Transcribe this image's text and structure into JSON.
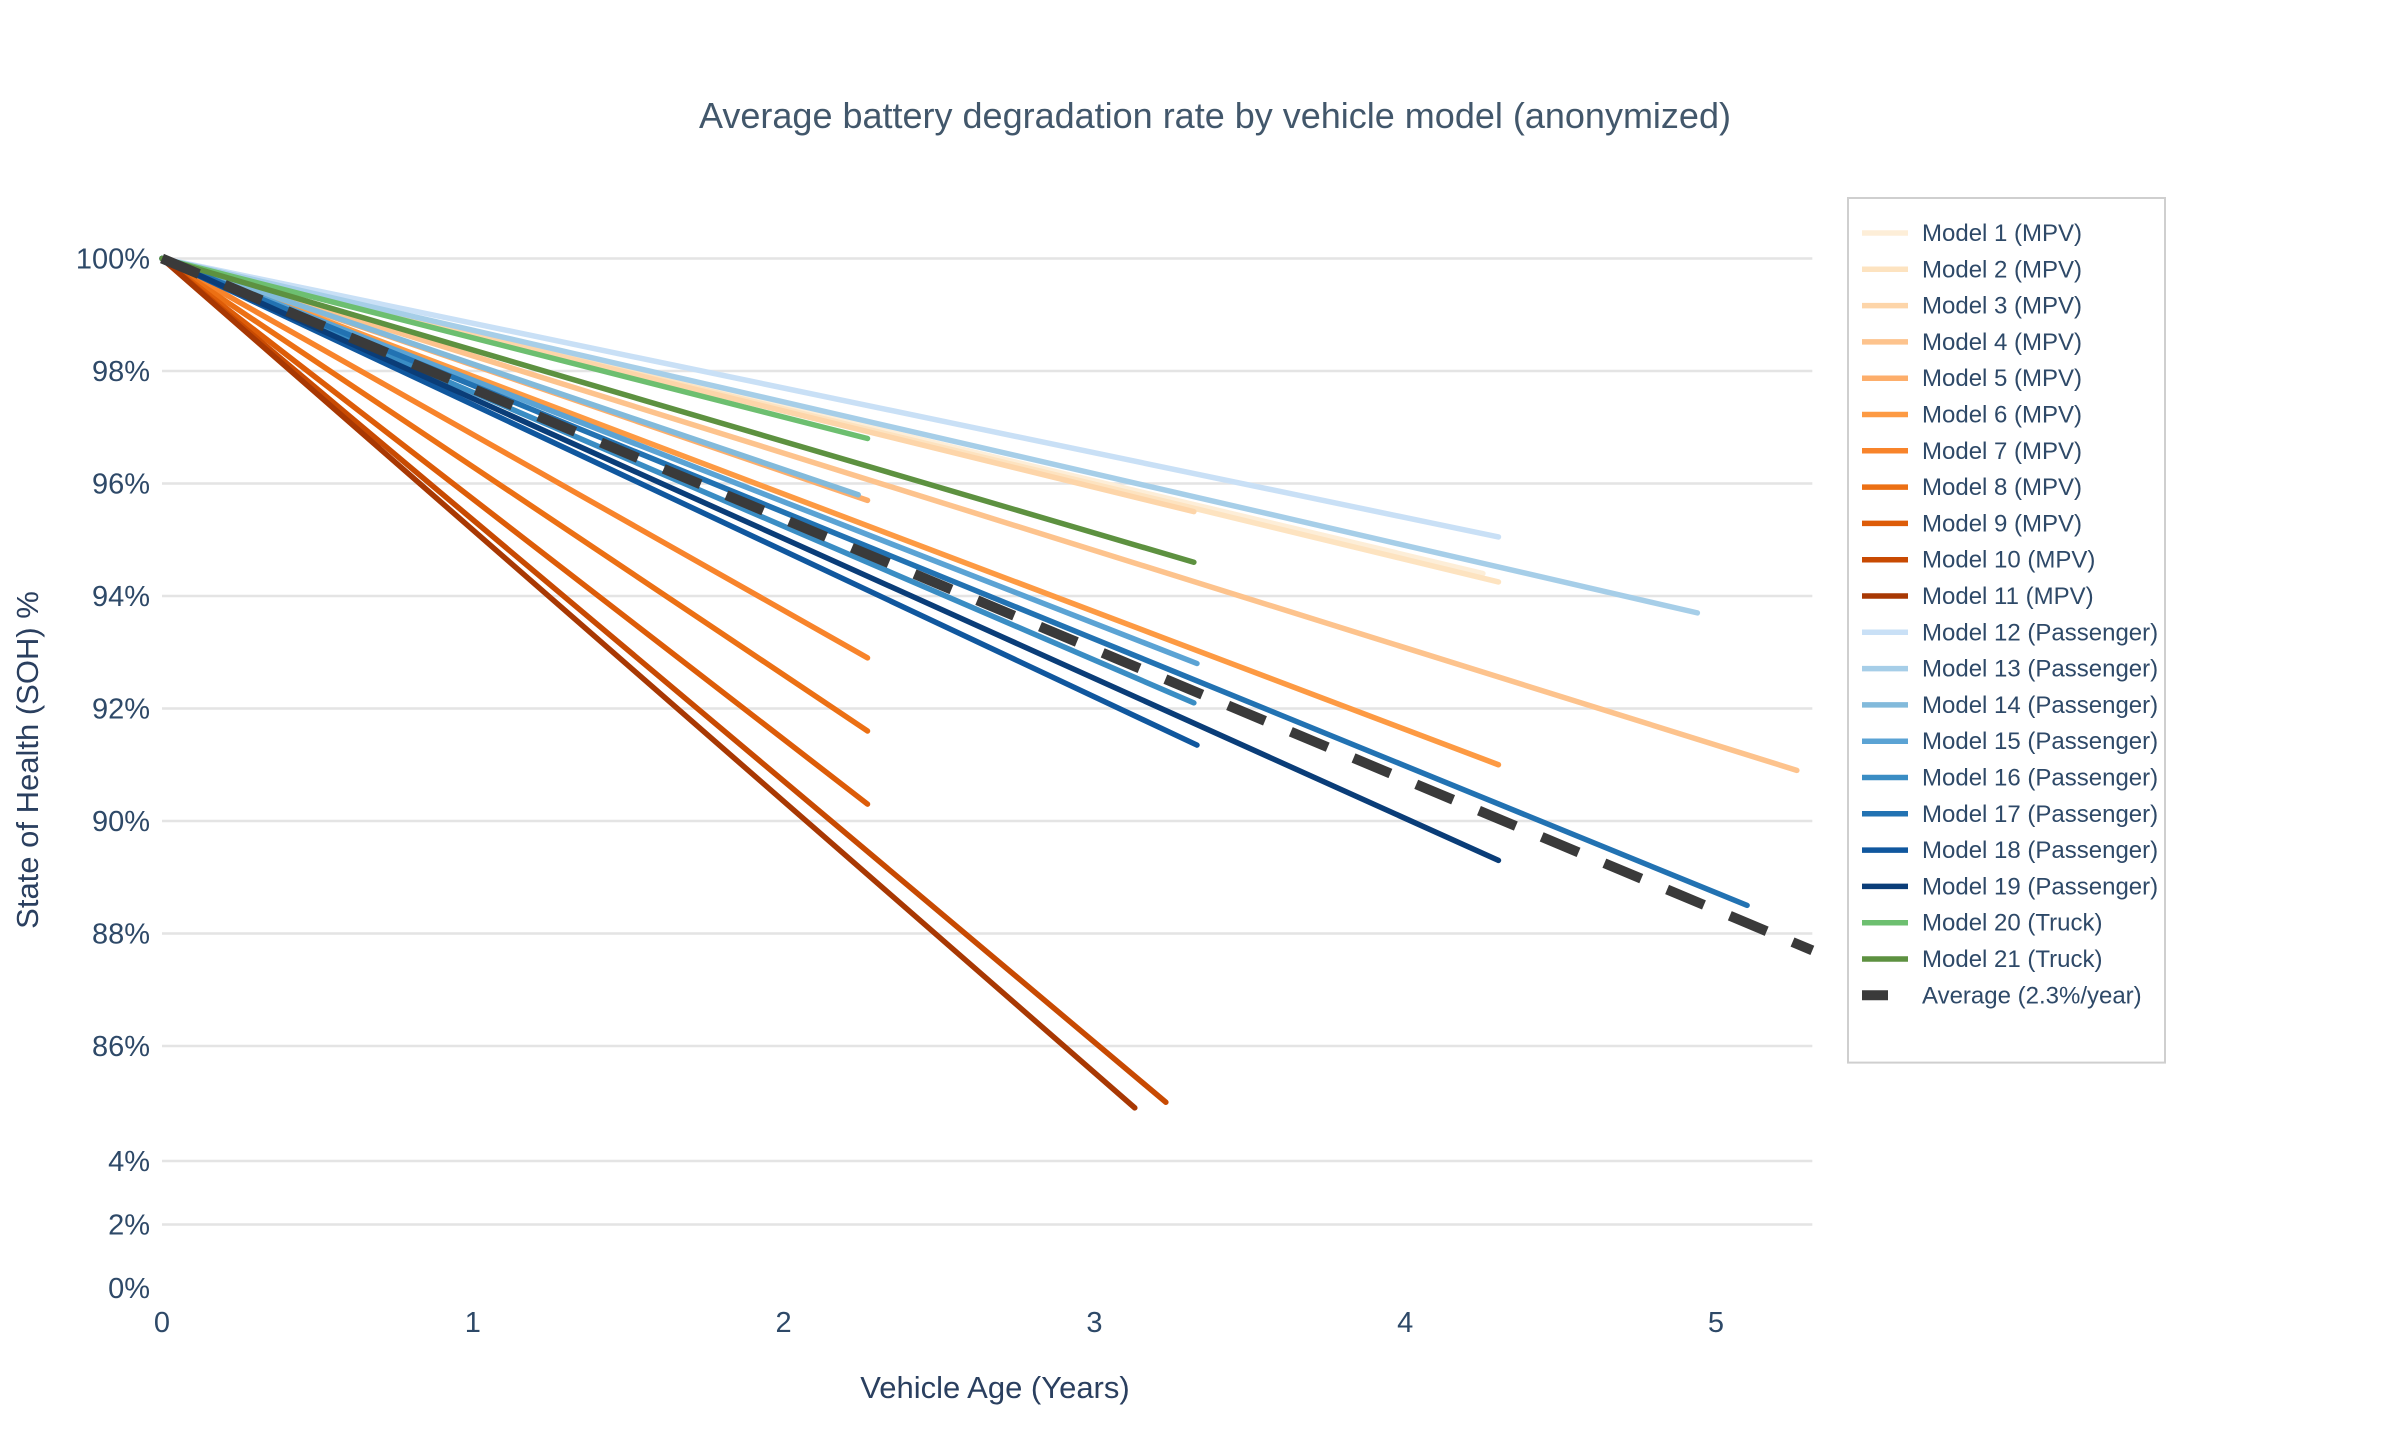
{
  "title": "Average battery degradation rate by vehicle model (anonymized)",
  "chart_data": {
    "type": "line",
    "title": "Average battery degradation rate by vehicle model (anonymized)",
    "xlabel": "Vehicle Age (Years)",
    "ylabel": "State of Health (SOH) %",
    "x_ticks": [
      0,
      1,
      2,
      3,
      4,
      5
    ],
    "y_tick_labels": [
      "100%",
      "98%",
      "96%",
      "94%",
      "92%",
      "90%",
      "88%",
      "86%",
      "4%",
      "2%",
      "0%"
    ],
    "y_tick_values": [
      100,
      98,
      96,
      94,
      92,
      90,
      88,
      86,
      4,
      2,
      0
    ],
    "y_axis_note": "broken axis: 100%..86% band shown expanded, 4%..0% band compressed below",
    "x_range": [
      0,
      5.31
    ],
    "grid": "horizontal-only",
    "legend_position": "right",
    "series": [
      {
        "name": "Model 1 (MPV)",
        "color": "#fdeed8",
        "dash": false,
        "x": [
          0,
          4.25
        ],
        "y": [
          100,
          94.4
        ]
      },
      {
        "name": "Model 2 (MPV)",
        "color": "#fde3c0",
        "dash": false,
        "x": [
          0,
          4.3
        ],
        "y": [
          100,
          94.25
        ]
      },
      {
        "name": "Model 3 (MPV)",
        "color": "#fdd5a9",
        "dash": false,
        "x": [
          0,
          3.32
        ],
        "y": [
          100,
          95.5
        ]
      },
      {
        "name": "Model 4 (MPV)",
        "color": "#fdc38d",
        "dash": false,
        "x": [
          0,
          5.26
        ],
        "y": [
          100,
          90.9
        ]
      },
      {
        "name": "Model 5 (MPV)",
        "color": "#fdae6b",
        "dash": false,
        "x": [
          0,
          2.27
        ],
        "y": [
          100,
          95.7
        ]
      },
      {
        "name": "Model 6 (MPV)",
        "color": "#fd9a43",
        "dash": false,
        "x": [
          0,
          4.3
        ],
        "y": [
          100,
          91.0
        ]
      },
      {
        "name": "Model 7 (MPV)",
        "color": "#f8842b",
        "dash": false,
        "x": [
          0,
          2.27
        ],
        "y": [
          100,
          92.9
        ]
      },
      {
        "name": "Model 8 (MPV)",
        "color": "#ec7014",
        "dash": false,
        "x": [
          0,
          2.27
        ],
        "y": [
          100,
          91.6
        ]
      },
      {
        "name": "Model 9 (MPV)",
        "color": "#dd5c08",
        "dash": false,
        "x": [
          0,
          2.27
        ],
        "y": [
          100,
          90.3
        ]
      },
      {
        "name": "Model 10 (MPV)",
        "color": "#c84a02",
        "dash": false,
        "x": [
          0,
          3.23
        ],
        "y": [
          100,
          85.0
        ]
      },
      {
        "name": "Model 11 (MPV)",
        "color": "#a83803",
        "dash": false,
        "x": [
          0,
          3.13
        ],
        "y": [
          100,
          84.9
        ]
      },
      {
        "name": "Model 12 (Passenger)",
        "color": "#c9e0f6",
        "dash": false,
        "x": [
          0,
          4.3
        ],
        "y": [
          100,
          95.05
        ]
      },
      {
        "name": "Model 13 (Passenger)",
        "color": "#a6cee8",
        "dash": false,
        "x": [
          0,
          4.94
        ],
        "y": [
          100,
          93.7
        ]
      },
      {
        "name": "Model 14 (Passenger)",
        "color": "#82badb",
        "dash": false,
        "x": [
          0,
          2.24
        ],
        "y": [
          100,
          95.8
        ]
      },
      {
        "name": "Model 15 (Passenger)",
        "color": "#5ba3d4",
        "dash": false,
        "x": [
          0,
          3.33
        ],
        "y": [
          100,
          92.8
        ]
      },
      {
        "name": "Model 16 (Passenger)",
        "color": "#3a8dc4",
        "dash": false,
        "x": [
          0,
          3.32
        ],
        "y": [
          100,
          92.1
        ]
      },
      {
        "name": "Model 17 (Passenger)",
        "color": "#2272b2",
        "dash": false,
        "x": [
          0,
          5.1
        ],
        "y": [
          100,
          88.5
        ]
      },
      {
        "name": "Model 18 (Passenger)",
        "color": "#10579e",
        "dash": false,
        "x": [
          0,
          3.33
        ],
        "y": [
          100,
          91.35
        ]
      },
      {
        "name": "Model 19 (Passenger)",
        "color": "#0a3d78",
        "dash": false,
        "x": [
          0,
          4.3
        ],
        "y": [
          100,
          89.3
        ]
      },
      {
        "name": "Model 20 (Truck)",
        "color": "#6dbf70",
        "dash": false,
        "x": [
          0,
          2.27
        ],
        "y": [
          100,
          96.8
        ]
      },
      {
        "name": "Model 21 (Truck)",
        "color": "#5d9140",
        "dash": false,
        "x": [
          0,
          3.32
        ],
        "y": [
          100,
          94.6
        ]
      },
      {
        "name": "Average (2.3%/year)",
        "color": "#3a3a3a",
        "dash": true,
        "x": [
          0,
          5.31
        ],
        "y": [
          100,
          87.7
        ]
      }
    ]
  },
  "colors": {
    "text": "#2e4968",
    "title_text": "#42576b",
    "gridline": "#e4e4e4",
    "legend_border": "#cfcfcf",
    "background": "#ffffff"
  }
}
